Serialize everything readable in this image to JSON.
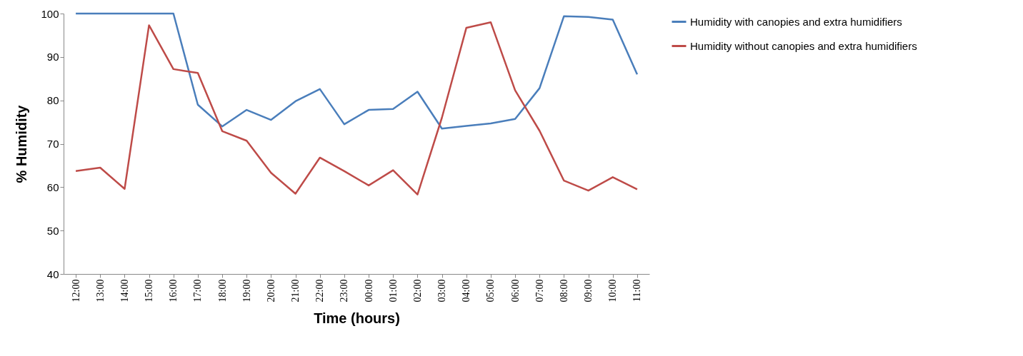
{
  "chart_data": {
    "type": "line",
    "xlabel": "Time (hours)",
    "ylabel": "% Humidity",
    "categories": [
      "12:00",
      "13:00",
      "14:00",
      "15:00",
      "16:00",
      "17:00",
      "18:00",
      "19:00",
      "20:00",
      "21:00",
      "22:00",
      "23:00",
      "00:00",
      "01:00",
      "02:00",
      "03:00",
      "04:00",
      "05:00",
      "06:00",
      "07:00",
      "08:00",
      "09:00",
      "10:00",
      "11:00"
    ],
    "series": [
      {
        "name": "Humidity with canopies and extra humidifiers",
        "color": "#4a7ebb",
        "values": [
          100,
          100,
          100,
          100,
          100,
          79,
          74,
          77.8,
          75.5,
          79.8,
          82.6,
          74.5,
          77.8,
          78,
          82,
          73.5,
          74.1,
          74.7,
          75.7,
          82.8,
          99.4,
          99.2,
          98.6,
          86
        ]
      },
      {
        "name": "Humidity without canopies and extra humidifiers",
        "color": "#be4b48",
        "values": [
          63.7,
          64.5,
          59.6,
          97.3,
          87.2,
          86.3,
          72.9,
          70.7,
          63.3,
          58.5,
          66.8,
          63.7,
          60.4,
          63.9,
          58.3,
          76,
          96.7,
          98,
          82.3,
          73,
          61.5,
          59.2,
          62.3,
          59.5
        ]
      }
    ],
    "ylim": [
      40,
      100
    ],
    "yticks": [
      40,
      50,
      60,
      70,
      80,
      90,
      100
    ],
    "grid": false,
    "legend": "right",
    "marker": "none",
    "line_style": "solid"
  }
}
